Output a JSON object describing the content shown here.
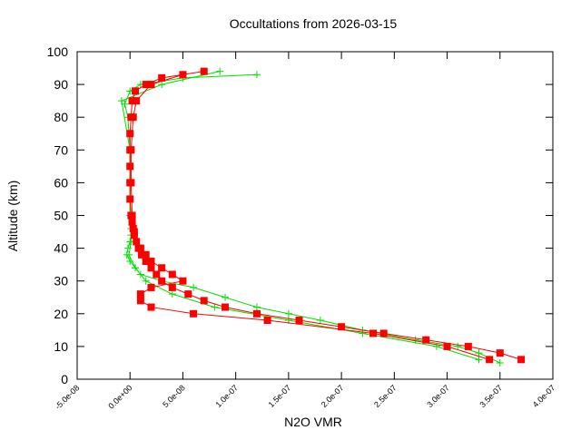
{
  "chart_data": {
    "type": "line",
    "title": "Occultations from 2026-03-15",
    "xlabel": "N2O VMR",
    "ylabel": "Altitude (km)",
    "xlim": [
      -5e-08,
      4e-07
    ],
    "ylim": [
      0,
      100
    ],
    "xticks": [
      {
        "value": -5e-08,
        "label": "-5.0e-08"
      },
      {
        "value": 0,
        "label": "0.0e+00"
      },
      {
        "value": 5e-08,
        "label": "5.0e-08"
      },
      {
        "value": 1e-07,
        "label": "1.0e-07"
      },
      {
        "value": 1.5e-07,
        "label": "1.5e-07"
      },
      {
        "value": 2e-07,
        "label": "2.0e-07"
      },
      {
        "value": 2.5e-07,
        "label": "2.5e-07"
      },
      {
        "value": 3e-07,
        "label": "3.0e-07"
      },
      {
        "value": 3.5e-07,
        "label": "3.5e-07"
      },
      {
        "value": 4e-07,
        "label": "4.0e-07"
      }
    ],
    "yticks": [
      0,
      10,
      20,
      30,
      40,
      50,
      60,
      70,
      80,
      90,
      100
    ],
    "grid": false,
    "series": [
      {
        "color": "#00e000",
        "marker": "plus",
        "x": [
          3.5e-07,
          3.3e-07,
          3.1e-07,
          2.7e-07,
          2.2e-07,
          1.8e-07,
          1.5e-07,
          1.2e-07,
          9e-08,
          6e-08,
          3e-08,
          1e-08,
          5e-09,
          0,
          -3e-09,
          -2e-09,
          0,
          1e-09,
          1e-09,
          0,
          0,
          0,
          -2e-09,
          -5e-09,
          0,
          1e-08,
          5e-08,
          1.2e-07
        ],
        "values": [
          5,
          8,
          10,
          12,
          15,
          18,
          20,
          22,
          25,
          28,
          30,
          32,
          34,
          36,
          38,
          40,
          42,
          44,
          46,
          50,
          60,
          70,
          80,
          84,
          88,
          90,
          92,
          93
        ]
      },
      {
        "color": "#00e000",
        "marker": "plus",
        "x": [
          3.3e-07,
          2.9e-07,
          2.2e-07,
          1.5e-07,
          8e-08,
          4e-08,
          1.5e-08,
          5e-09,
          -1e-09,
          1e-09,
          0,
          0,
          -8e-09,
          3e-08,
          8.5e-08
        ],
        "values": [
          6,
          10,
          14,
          18,
          22,
          26,
          30,
          34,
          38,
          42,
          50,
          70,
          85,
          90,
          94
        ]
      },
      {
        "color": "#ff0000",
        "marker": "square",
        "x": [
          3.7e-07,
          3.5e-07,
          3.2e-07,
          2.8e-07,
          2.4e-07,
          2e-07,
          1.6e-07,
          1.2e-07,
          9e-08,
          7e-08,
          5.5e-08,
          4e-08,
          3e-08,
          2.5e-08,
          2e-08,
          1.5e-08,
          1.1e-08,
          8e-09,
          6e-09,
          4e-09,
          3e-09,
          2e-09,
          1e-09,
          0,
          0,
          0,
          0,
          0,
          1e-09,
          2e-09,
          5e-09,
          1.5e-08,
          3e-08,
          7e-08
        ],
        "values": [
          6,
          8,
          10,
          12,
          14,
          16,
          18,
          20,
          22,
          24,
          26,
          28,
          30,
          32,
          34,
          36,
          38,
          40,
          42,
          44,
          46,
          48,
          50,
          55,
          60,
          65,
          70,
          75,
          80,
          85,
          88,
          90,
          92,
          94
        ]
      },
      {
        "color": "#ff0000",
        "marker": "square",
        "x": [
          3.4e-07,
          3e-07,
          2.3e-07,
          1.3e-07,
          6e-08,
          2e-08,
          1e-08,
          1e-08,
          2e-08,
          5e-08,
          4e-08,
          3e-08,
          2e-08,
          1.5e-08,
          1e-08,
          4e-09,
          2e-09,
          1e-09,
          1e-09,
          3e-09,
          6e-09,
          2e-08,
          5e-08
        ],
        "values": [
          6,
          10,
          14,
          18,
          20,
          22,
          24,
          26,
          28,
          30,
          32,
          34,
          36,
          38,
          40,
          45,
          50,
          60,
          70,
          80,
          85,
          90,
          93
        ]
      }
    ]
  }
}
